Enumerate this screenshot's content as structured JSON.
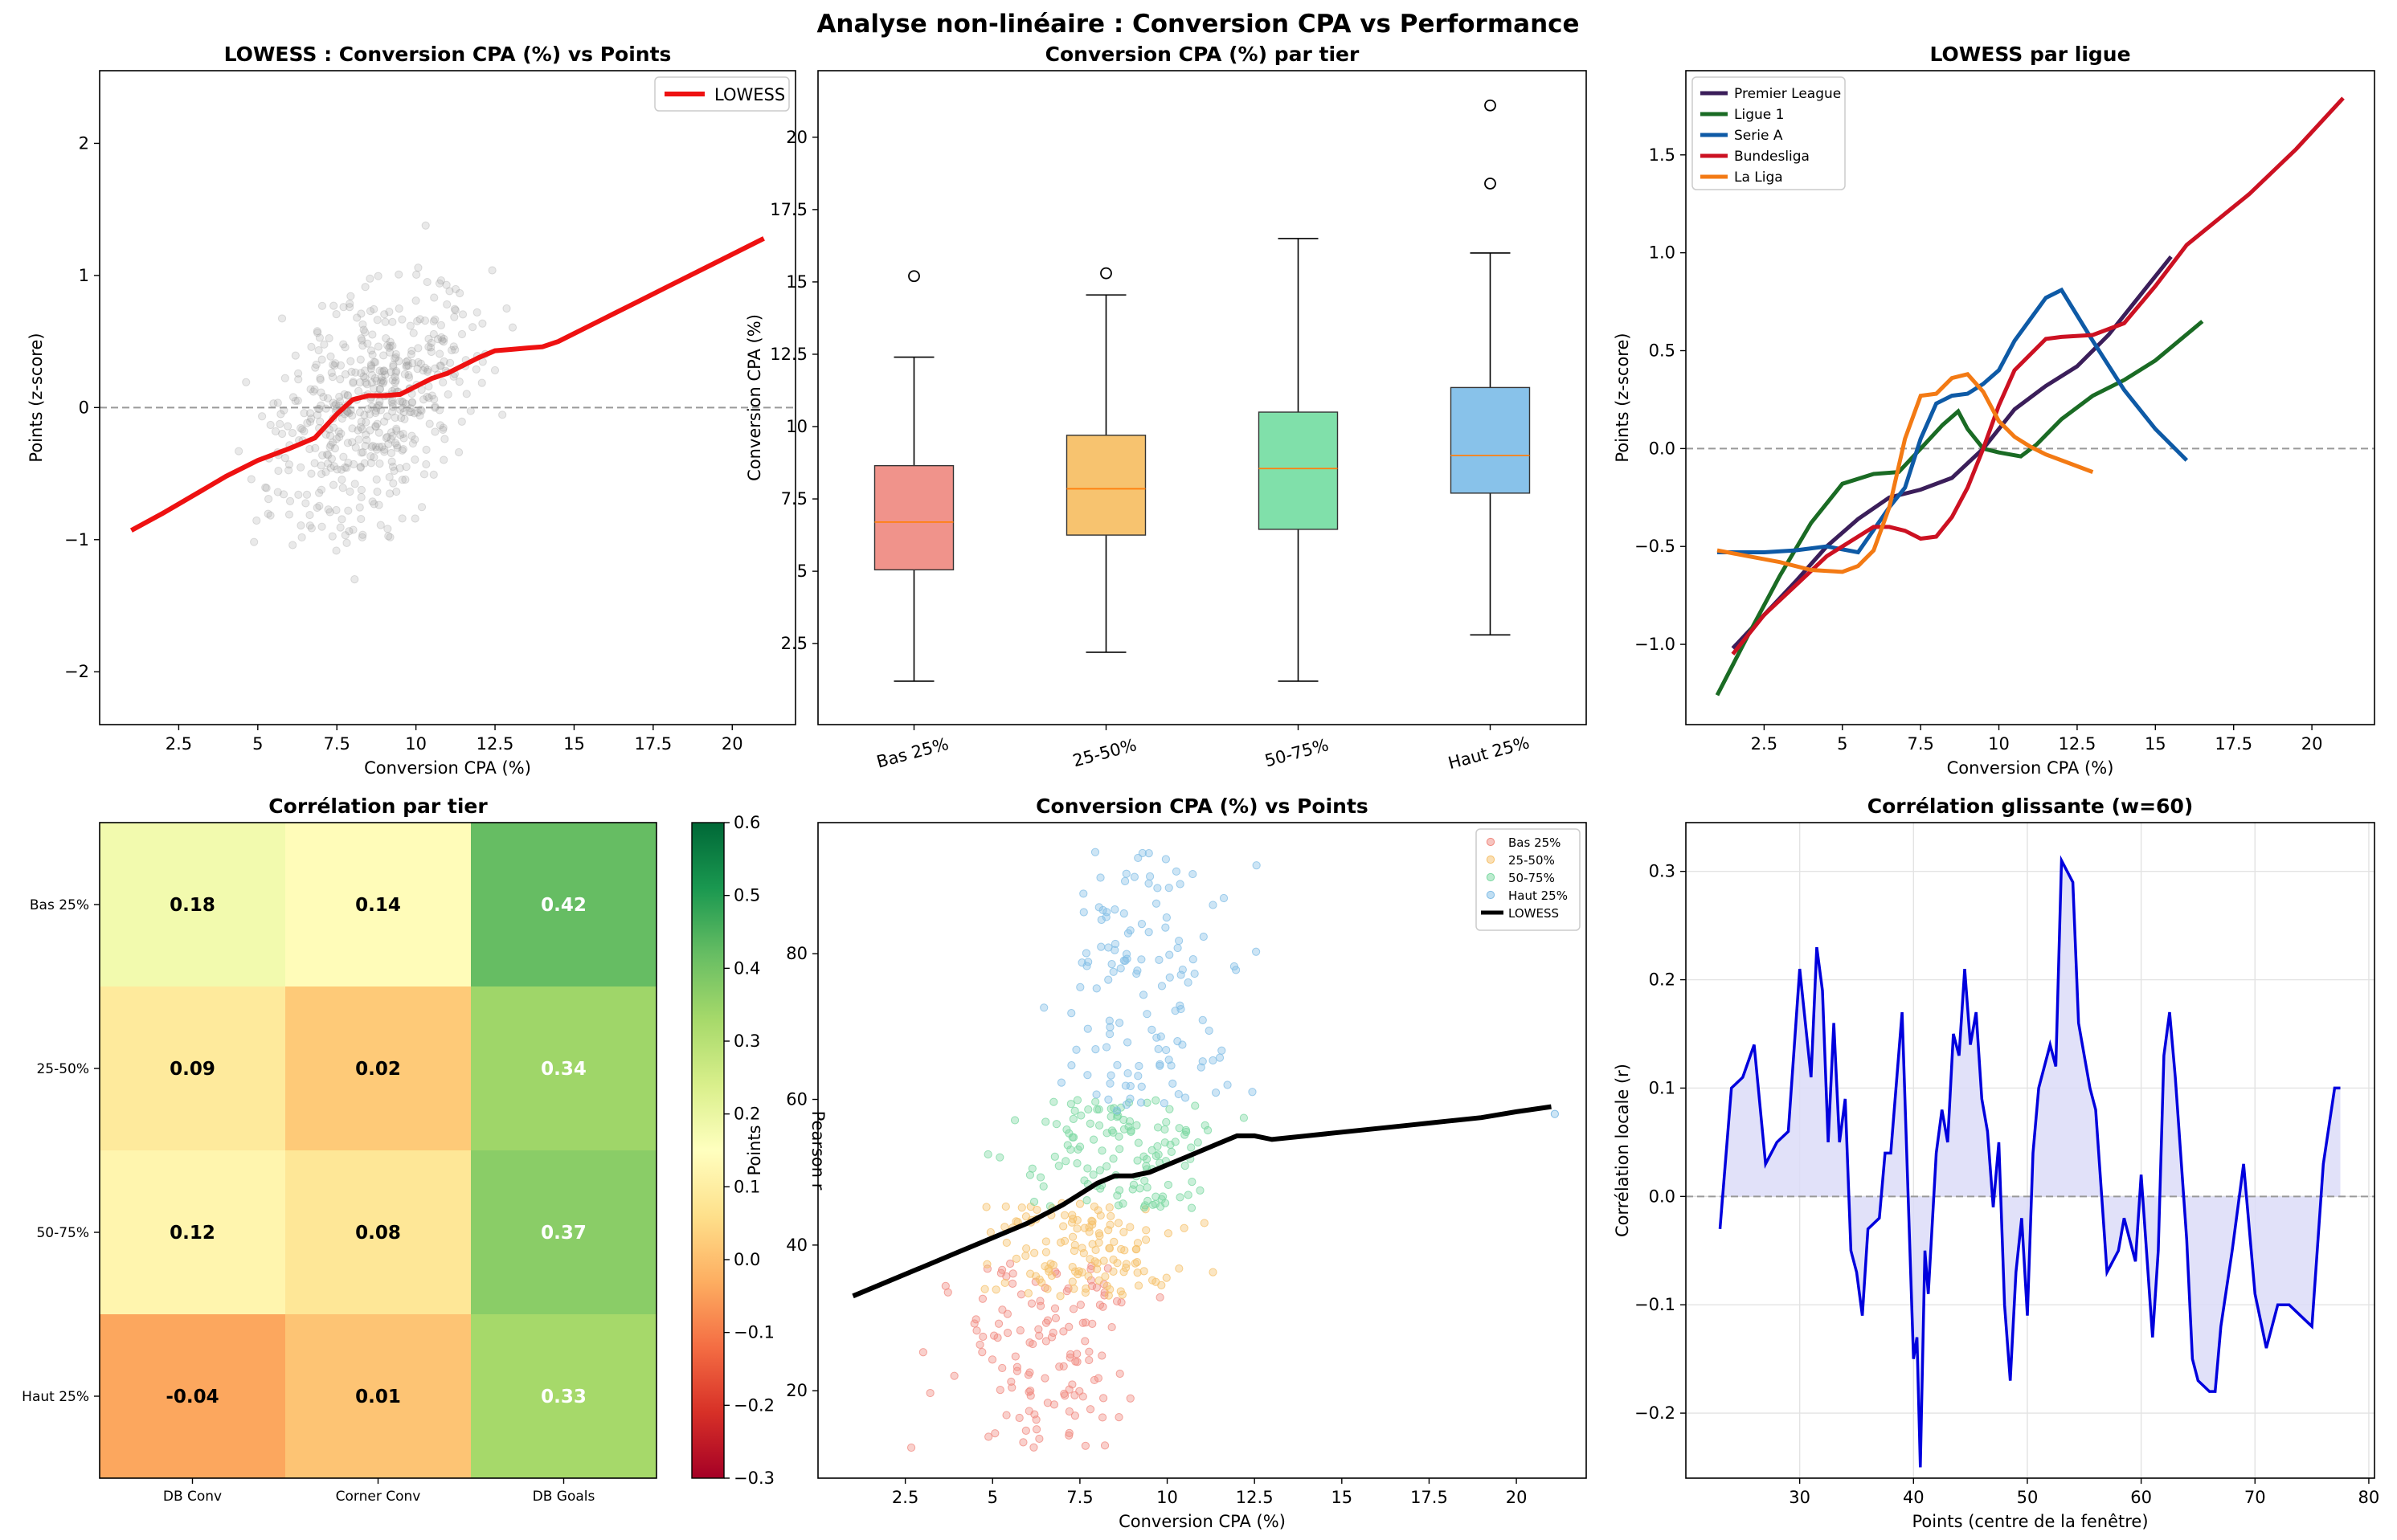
{
  "figure_title": "Analyse non-linéaire : Conversion CPA vs Performance",
  "chart_data": [
    {
      "id": "p1",
      "type": "scatter",
      "title": "LOWESS : Conversion CPA (%) vs Points",
      "xlabel": "Conversion CPA (%)",
      "ylabel": "Points (z-score)",
      "xlim": [
        0,
        22
      ],
      "ylim": [
        -2.4,
        2.55
      ],
      "xticks": [
        2.5,
        5.0,
        7.5,
        10.0,
        12.5,
        15.0,
        17.5,
        20.0
      ],
      "yticks": [
        -2,
        -1,
        0,
        1,
        2
      ],
      "ytick_labels": [
        "−2",
        "−1",
        "0",
        "1",
        "2"
      ],
      "hline": 0,
      "legend": {
        "position": "top-right",
        "entries": [
          {
            "label": "LOWESS",
            "color": "#ee1111"
          }
        ]
      },
      "scatter_color": "#999999",
      "lowess": {
        "color": "#ee1111",
        "x": [
          1.0,
          2.0,
          3.0,
          4.0,
          5.0,
          6.0,
          6.8,
          7.5,
          8.0,
          8.5,
          9.0,
          9.5,
          10.0,
          10.5,
          11.0,
          11.5,
          12.0,
          12.5,
          13.0,
          13.5,
          14.0,
          14.5,
          15.0,
          16.0,
          17.0,
          18.0,
          19.0,
          20.0,
          21.0
        ],
        "y": [
          -0.93,
          -0.8,
          -0.66,
          -0.52,
          -0.4,
          -0.31,
          -0.23,
          -0.05,
          0.06,
          0.09,
          0.09,
          0.1,
          0.16,
          0.22,
          0.26,
          0.32,
          0.38,
          0.43,
          0.44,
          0.45,
          0.46,
          0.5,
          0.56,
          0.68,
          0.8,
          0.92,
          1.04,
          1.16,
          1.28
        ]
      }
    },
    {
      "id": "p2",
      "type": "box",
      "title": "Conversion CPA (%) par tier",
      "xlabel": "",
      "ylabel": "Conversion CPA (%)",
      "ylim": [
        -0.3,
        22.3
      ],
      "yticks": [
        2.5,
        5.0,
        7.5,
        10.0,
        12.5,
        15.0,
        17.5,
        20.0
      ],
      "categories": [
        "Bas 25%",
        "25-50%",
        "50-75%",
        "Haut 25%"
      ],
      "boxes": [
        {
          "min": 1.2,
          "q1": 5.05,
          "median": 6.7,
          "q3": 8.65,
          "max": 12.4,
          "outliers": [
            15.2
          ],
          "color": "#f0938b"
        },
        {
          "min": 2.2,
          "q1": 6.25,
          "median": 7.85,
          "q3": 9.7,
          "max": 14.55,
          "outliers": [
            15.3
          ],
          "color": "#f7c36f"
        },
        {
          "min": 1.2,
          "q1": 6.45,
          "median": 8.55,
          "q3": 10.5,
          "max": 16.5,
          "outliers": [],
          "color": "#80e0aa"
        },
        {
          "min": 2.8,
          "q1": 7.7,
          "median": 9.0,
          "q3": 11.35,
          "max": 16.0,
          "outliers": [
            18.4,
            21.1
          ],
          "color": "#88c2ea"
        }
      ]
    },
    {
      "id": "p3",
      "type": "line",
      "title": "LOWESS par ligue",
      "xlabel": "Conversion CPA (%)",
      "ylabel": "Points (z-score)",
      "xlim": [
        0,
        22
      ],
      "ylim": [
        -1.41,
        1.93
      ],
      "xticks": [
        2.5,
        5.0,
        7.5,
        10.0,
        12.5,
        15.0,
        17.5,
        20.0
      ],
      "yticks": [
        -1.0,
        -0.5,
        0.0,
        0.5,
        1.0,
        1.5
      ],
      "ytick_labels": [
        "−1.0",
        "−0.5",
        "0.0",
        "0.5",
        "1.0",
        "1.5"
      ],
      "hline": 0,
      "legend": "top-left",
      "series": [
        {
          "name": "Premier League",
          "color": "#3b1e5a",
          "x": [
            1.5,
            2.5,
            3.5,
            4.5,
            5.5,
            6.5,
            7.5,
            8.5,
            9.5,
            10.5,
            11.5,
            12.5,
            13.5,
            14.5,
            15.5
          ],
          "y": [
            -1.02,
            -0.85,
            -0.68,
            -0.5,
            -0.36,
            -0.25,
            -0.21,
            -0.15,
            0.0,
            0.2,
            0.32,
            0.42,
            0.58,
            0.78,
            0.98
          ]
        },
        {
          "name": "Ligue 1",
          "color": "#1a6b24",
          "x": [
            1.0,
            2.0,
            3.0,
            4.0,
            5.0,
            6.0,
            6.8,
            7.5,
            8.2,
            8.7,
            9.0,
            9.5,
            10.0,
            10.7,
            11.2,
            12.0,
            13.0,
            14.0,
            15.0,
            16.5
          ],
          "y": [
            -1.26,
            -0.95,
            -0.65,
            -0.38,
            -0.18,
            -0.13,
            -0.12,
            0.0,
            0.12,
            0.19,
            0.1,
            0.0,
            -0.02,
            -0.04,
            0.02,
            0.15,
            0.27,
            0.35,
            0.45,
            0.65
          ]
        },
        {
          "name": "Serie A",
          "color": "#0e5aa6",
          "x": [
            1.0,
            2.5,
            3.5,
            4.5,
            5.5,
            6.5,
            7.0,
            7.5,
            8.0,
            8.5,
            9.0,
            9.5,
            10.0,
            10.5,
            11.0,
            11.5,
            12.0,
            12.5,
            13.0,
            14.0,
            15.0,
            16.0
          ],
          "y": [
            -0.53,
            -0.53,
            -0.52,
            -0.5,
            -0.53,
            -0.3,
            -0.2,
            0.05,
            0.23,
            0.27,
            0.28,
            0.33,
            0.4,
            0.55,
            0.66,
            0.77,
            0.81,
            0.68,
            0.55,
            0.3,
            0.1,
            -0.06
          ]
        },
        {
          "name": "Bundesliga",
          "color": "#cc1122",
          "x": [
            1.5,
            2.5,
            3.5,
            4.5,
            5.5,
            6.0,
            6.5,
            7.0,
            7.5,
            8.0,
            8.5,
            9.0,
            9.5,
            10.0,
            10.5,
            11.0,
            11.5,
            12.0,
            13.0,
            14.0,
            15.0,
            16.0,
            18.0,
            19.5,
            21.0
          ],
          "y": [
            -1.05,
            -0.85,
            -0.7,
            -0.55,
            -0.45,
            -0.4,
            -0.4,
            -0.42,
            -0.46,
            -0.45,
            -0.35,
            -0.2,
            0.0,
            0.22,
            0.4,
            0.48,
            0.56,
            0.57,
            0.58,
            0.64,
            0.83,
            1.04,
            1.3,
            1.53,
            1.79
          ]
        },
        {
          "name": "La Liga",
          "color": "#f37a14",
          "x": [
            1.0,
            2.0,
            3.0,
            4.0,
            5.0,
            5.5,
            6.0,
            6.5,
            7.0,
            7.5,
            8.0,
            8.5,
            9.0,
            9.5,
            10.0,
            10.5,
            11.0,
            11.5,
            12.0,
            13.0
          ],
          "y": [
            -0.52,
            -0.55,
            -0.58,
            -0.62,
            -0.63,
            -0.6,
            -0.52,
            -0.3,
            0.05,
            0.27,
            0.28,
            0.36,
            0.38,
            0.29,
            0.14,
            0.06,
            0.01,
            -0.03,
            -0.06,
            -0.12
          ]
        }
      ]
    },
    {
      "id": "p4",
      "type": "heatmap",
      "title": "Corrélation par tier",
      "rows": [
        "Bas 25%",
        "25-50%",
        "50-75%",
        "Haut 25%"
      ],
      "cols": [
        "DB Conv",
        "Corner Conv",
        "DB Goals"
      ],
      "values": [
        [
          0.18,
          0.14,
          0.42
        ],
        [
          0.09,
          0.02,
          0.34
        ],
        [
          0.12,
          0.08,
          0.37
        ],
        [
          -0.04,
          0.01,
          0.33
        ]
      ],
      "labels": [
        [
          "0.18",
          "0.14",
          "0.42"
        ],
        [
          "0.09",
          "0.02",
          "0.34"
        ],
        [
          "0.12",
          "0.08",
          "0.37"
        ],
        [
          "-0.04",
          "0.01",
          "0.33"
        ]
      ],
      "colorbar": {
        "label": "Pearson r",
        "min": -0.3,
        "max": 0.6,
        "ticks": [
          -0.3,
          -0.2,
          -0.1,
          0.0,
          0.1,
          0.2,
          0.3,
          0.4,
          0.5,
          0.6
        ],
        "tick_labels": [
          "−0.3",
          "−0.2",
          "−0.1",
          "0.0",
          "0.1",
          "0.2",
          "0.3",
          "0.4",
          "0.5",
          "0.6"
        ]
      },
      "colormap_stops": [
        "#a50026",
        "#d73027",
        "#f46d43",
        "#fdae61",
        "#fee08b",
        "#ffffbf",
        "#d9ef8b",
        "#a6d96a",
        "#66bd63",
        "#1a9850",
        "#006837"
      ]
    },
    {
      "id": "p5",
      "type": "scatter",
      "title": "Conversion CPA (%) vs Points",
      "xlabel": "Conversion CPA (%)",
      "ylabel": "Points",
      "xlim": [
        0,
        22
      ],
      "ylim": [
        8,
        98
      ],
      "xticks": [
        2.5,
        5.0,
        7.5,
        10.0,
        12.5,
        15.0,
        17.5,
        20.0
      ],
      "yticks": [
        20,
        40,
        60,
        80
      ],
      "legend": {
        "position": "top-right"
      },
      "groups": [
        {
          "name": "Bas 25%",
          "color": "#f08a80",
          "points_min": 12,
          "points_max": 38
        },
        {
          "name": "25-50%",
          "color": "#f5c06a",
          "points_min": 33,
          "points_max": 46
        },
        {
          "name": "50-75%",
          "color": "#7ad8a0",
          "points_min": 45,
          "points_max": 60
        },
        {
          "name": "Haut 25%",
          "color": "#82bde6",
          "points_min": 58,
          "points_max": 94
        }
      ],
      "lowess_label": "LOWESS",
      "lowess": {
        "color": "#000000",
        "x": [
          1.0,
          2.0,
          3.0,
          4.0,
          5.0,
          6.0,
          7.0,
          7.5,
          8.0,
          8.5,
          9.0,
          9.5,
          10.0,
          10.5,
          11.0,
          11.5,
          12.0,
          12.5,
          13.0,
          14.0,
          15.0,
          16.0,
          17.0,
          18.0,
          19.0,
          20.0,
          21.0
        ],
        "y": [
          33,
          35,
          37,
          39,
          41,
          43,
          45.5,
          47,
          48.5,
          49.5,
          49.5,
          50,
          51,
          52,
          53,
          54,
          55,
          55,
          54.5,
          55,
          55.5,
          56,
          56.5,
          57,
          57.5,
          58.3,
          59
        ]
      }
    },
    {
      "id": "p6",
      "type": "area",
      "title": "Corrélation glissante (w=60)",
      "xlabel": "Points (centre de la fenêtre)",
      "ylabel": "Corrélation locale (r)",
      "xlim": [
        20,
        80.5
      ],
      "ylim": [
        -0.26,
        0.345
      ],
      "xticks": [
        30,
        40,
        50,
        60,
        70,
        80
      ],
      "yticks": [
        -0.2,
        -0.1,
        0.0,
        0.1,
        0.2,
        0.3
      ],
      "ytick_labels": [
        "−0.2",
        "−0.1",
        "0.0",
        "0.1",
        "0.2",
        "0.3"
      ],
      "hline": 0,
      "grid": true,
      "line_color": "#0000dd",
      "fill_color": "#dcdcf8",
      "x": [
        23,
        24,
        25,
        26,
        27,
        28,
        29,
        30,
        31,
        31.5,
        32,
        32.5,
        33,
        33.5,
        34,
        34.5,
        35,
        35.5,
        36,
        37,
        37.5,
        38,
        39,
        40,
        40.3,
        40.6,
        41,
        41.3,
        42,
        42.5,
        43,
        43.5,
        44,
        44.5,
        45,
        45.5,
        46,
        46.5,
        47,
        47.5,
        48,
        48.5,
        49,
        49.5,
        50,
        50.5,
        51,
        52,
        52.5,
        53,
        54,
        54.5,
        55,
        55.5,
        56,
        57,
        58,
        58.5,
        59,
        59.5,
        60,
        61,
        61.5,
        62,
        62.5,
        63,
        64,
        64.5,
        65,
        66,
        66.5,
        67,
        68,
        69,
        70,
        71,
        72,
        73,
        74,
        75,
        76,
        77,
        77.5
      ],
      "y": [
        -0.03,
        0.1,
        0.11,
        0.14,
        0.03,
        0.05,
        0.06,
        0.21,
        0.11,
        0.23,
        0.19,
        0.05,
        0.16,
        0.05,
        0.09,
        -0.05,
        -0.07,
        -0.11,
        -0.03,
        -0.02,
        0.04,
        0.04,
        0.17,
        -0.15,
        -0.13,
        -0.25,
        -0.05,
        -0.09,
        0.04,
        0.08,
        0.05,
        0.15,
        0.13,
        0.21,
        0.14,
        0.17,
        0.09,
        0.06,
        -0.01,
        0.05,
        -0.1,
        -0.17,
        -0.07,
        -0.02,
        -0.11,
        0.04,
        0.1,
        0.14,
        0.12,
        0.31,
        0.29,
        0.16,
        0.13,
        0.1,
        0.08,
        -0.07,
        -0.05,
        -0.02,
        -0.04,
        -0.06,
        0.02,
        -0.13,
        -0.05,
        0.13,
        0.17,
        0.11,
        -0.04,
        -0.15,
        -0.17,
        -0.18,
        -0.18,
        -0.12,
        -0.05,
        0.03,
        -0.09,
        -0.14,
        -0.1,
        -0.1,
        -0.11,
        -0.12,
        0.03,
        0.1,
        0.1
      ]
    }
  ]
}
